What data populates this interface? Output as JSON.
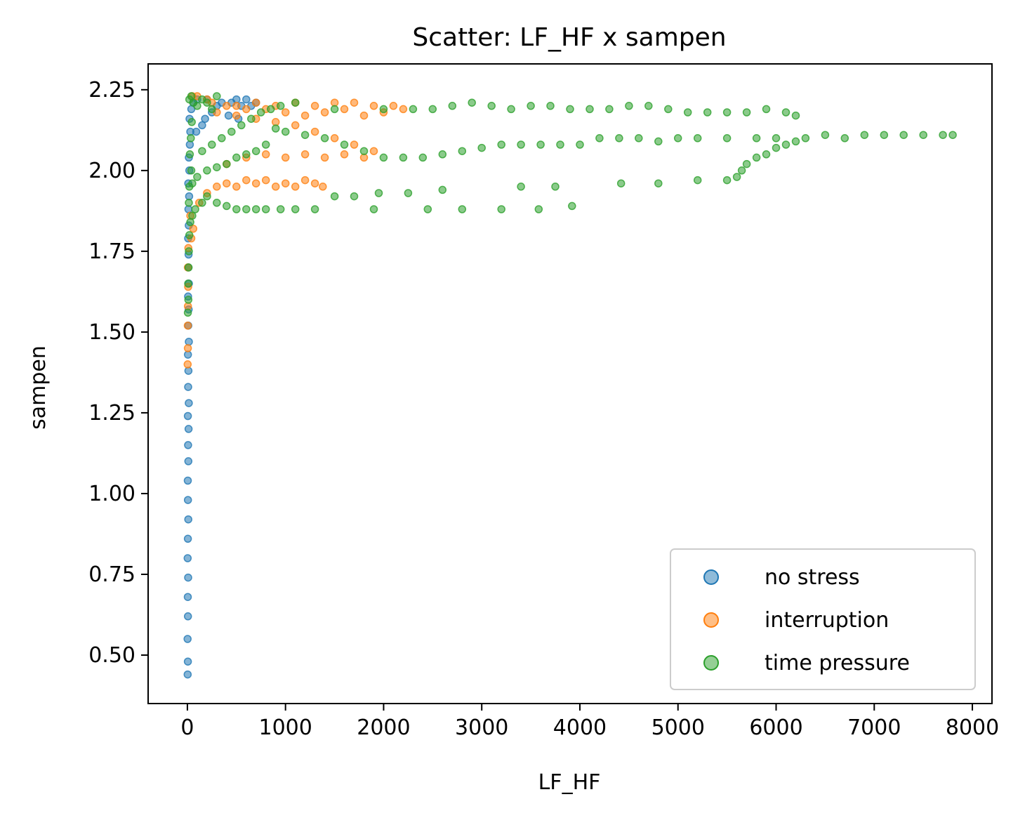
{
  "chart_data": {
    "type": "scatter",
    "title": "Scatter: LF_HF x sampen",
    "xlabel": "LF_HF",
    "ylabel": "sampen",
    "xlim": [
      -400,
      8200
    ],
    "ylim": [
      0.35,
      2.33
    ],
    "xticks": [
      0,
      1000,
      2000,
      3000,
      4000,
      5000,
      6000,
      7000,
      8000
    ],
    "xtick_labels": [
      "0",
      "1000",
      "2000",
      "3000",
      "4000",
      "5000",
      "6000",
      "7000",
      "8000"
    ],
    "yticks": [
      0.5,
      0.75,
      1.0,
      1.25,
      1.5,
      1.75,
      2.0,
      2.25
    ],
    "ytick_labels": [
      "0.50",
      "0.75",
      "1.00",
      "1.25",
      "1.50",
      "1.75",
      "2.00",
      "2.25"
    ],
    "grid": false,
    "legend_position": "bottom-right",
    "series": [
      {
        "name": "no stress",
        "color": "#1f77b4",
        "points": [
          [
            3,
            0.44
          ],
          [
            5,
            0.48
          ],
          [
            2,
            0.55
          ],
          [
            6,
            0.62
          ],
          [
            4,
            0.68
          ],
          [
            8,
            0.74
          ],
          [
            3,
            0.8
          ],
          [
            5,
            0.86
          ],
          [
            9,
            0.92
          ],
          [
            6,
            0.98
          ],
          [
            4,
            1.04
          ],
          [
            10,
            1.1
          ],
          [
            7,
            1.15
          ],
          [
            12,
            1.2
          ],
          [
            5,
            1.24
          ],
          [
            14,
            1.28
          ],
          [
            8,
            1.33
          ],
          [
            11,
            1.38
          ],
          [
            6,
            1.43
          ],
          [
            15,
            1.47
          ],
          [
            9,
            1.52
          ],
          [
            13,
            1.57
          ],
          [
            7,
            1.61
          ],
          [
            16,
            1.65
          ],
          [
            10,
            1.7
          ],
          [
            12,
            1.74
          ],
          [
            8,
            1.79
          ],
          [
            14,
            1.83
          ],
          [
            11,
            1.88
          ],
          [
            18,
            1.92
          ],
          [
            9,
            1.96
          ],
          [
            20,
            2.0
          ],
          [
            15,
            2.04
          ],
          [
            25,
            2.08
          ],
          [
            30,
            2.12
          ],
          [
            22,
            2.16
          ],
          [
            40,
            2.19
          ],
          [
            60,
            2.21
          ],
          [
            100,
            2.22
          ],
          [
            200,
            2.22
          ],
          [
            350,
            2.21
          ],
          [
            500,
            2.22
          ],
          [
            600,
            2.22
          ],
          [
            700,
            2.21
          ],
          [
            650,
            2.2
          ],
          [
            550,
            2.2
          ],
          [
            450,
            2.21
          ],
          [
            300,
            2.2
          ],
          [
            250,
            2.18
          ],
          [
            180,
            2.16
          ],
          [
            420,
            2.17
          ],
          [
            520,
            2.16
          ],
          [
            150,
            2.14
          ],
          [
            90,
            2.12
          ]
        ]
      },
      {
        "name": "interruption",
        "color": "#ff7f0e",
        "points": [
          [
            3,
            1.4
          ],
          [
            5,
            1.45
          ],
          [
            4,
            1.52
          ],
          [
            6,
            1.58
          ],
          [
            8,
            1.64
          ],
          [
            5,
            1.7
          ],
          [
            10,
            1.76
          ],
          [
            40,
            1.79
          ],
          [
            60,
            1.82
          ],
          [
            30,
            1.86
          ],
          [
            120,
            1.9
          ],
          [
            200,
            1.93
          ],
          [
            300,
            1.95
          ],
          [
            400,
            1.96
          ],
          [
            500,
            1.95
          ],
          [
            600,
            1.97
          ],
          [
            700,
            1.96
          ],
          [
            800,
            1.97
          ],
          [
            900,
            1.95
          ],
          [
            1000,
            1.96
          ],
          [
            1100,
            1.95
          ],
          [
            1200,
            1.97
          ],
          [
            1300,
            1.96
          ],
          [
            1380,
            1.95
          ],
          [
            400,
            2.02
          ],
          [
            600,
            2.04
          ],
          [
            800,
            2.05
          ],
          [
            1000,
            2.04
          ],
          [
            1200,
            2.05
          ],
          [
            1400,
            2.04
          ],
          [
            1600,
            2.05
          ],
          [
            1800,
            2.04
          ],
          [
            1900,
            2.06
          ],
          [
            1700,
            2.08
          ],
          [
            1500,
            2.1
          ],
          [
            1300,
            2.12
          ],
          [
            1100,
            2.14
          ],
          [
            900,
            2.15
          ],
          [
            700,
            2.16
          ],
          [
            500,
            2.17
          ],
          [
            300,
            2.18
          ],
          [
            500,
            2.2
          ],
          [
            700,
            2.21
          ],
          [
            900,
            2.2
          ],
          [
            1100,
            2.21
          ],
          [
            1300,
            2.2
          ],
          [
            1500,
            2.21
          ],
          [
            1700,
            2.21
          ],
          [
            1900,
            2.2
          ],
          [
            2100,
            2.2
          ],
          [
            2200,
            2.19
          ],
          [
            2000,
            2.18
          ],
          [
            1800,
            2.17
          ],
          [
            1600,
            2.19
          ],
          [
            1400,
            2.18
          ],
          [
            1200,
            2.17
          ],
          [
            1000,
            2.18
          ],
          [
            800,
            2.19
          ],
          [
            600,
            2.19
          ],
          [
            400,
            2.2
          ],
          [
            200,
            2.22
          ],
          [
            100,
            2.23
          ],
          [
            50,
            2.23
          ],
          [
            250,
            2.21
          ]
        ]
      },
      {
        "name": "time pressure",
        "color": "#2ca02c",
        "points": [
          [
            5,
            1.56
          ],
          [
            10,
            1.6
          ],
          [
            8,
            1.65
          ],
          [
            12,
            1.7
          ],
          [
            15,
            1.75
          ],
          [
            20,
            1.8
          ],
          [
            30,
            1.84
          ],
          [
            50,
            1.86
          ],
          [
            80,
            1.88
          ],
          [
            150,
            1.9
          ],
          [
            200,
            1.92
          ],
          [
            300,
            1.9
          ],
          [
            400,
            1.89
          ],
          [
            500,
            1.88
          ],
          [
            600,
            1.88
          ],
          [
            700,
            1.88
          ],
          [
            800,
            1.88
          ],
          [
            950,
            1.88
          ],
          [
            1100,
            1.88
          ],
          [
            1300,
            1.88
          ],
          [
            1500,
            1.92
          ],
          [
            1700,
            1.92
          ],
          [
            1900,
            1.88
          ],
          [
            1950,
            1.93
          ],
          [
            2250,
            1.93
          ],
          [
            2450,
            1.88
          ],
          [
            2600,
            1.94
          ],
          [
            2800,
            1.88
          ],
          [
            3200,
            1.88
          ],
          [
            3400,
            1.95
          ],
          [
            3580,
            1.88
          ],
          [
            3750,
            1.95
          ],
          [
            3920,
            1.89
          ],
          [
            4420,
            1.96
          ],
          [
            4800,
            1.96
          ],
          [
            5200,
            1.97
          ],
          [
            5500,
            1.97
          ],
          [
            5600,
            1.98
          ],
          [
            5650,
            2.0
          ],
          [
            5700,
            2.02
          ],
          [
            5800,
            2.04
          ],
          [
            5900,
            2.05
          ],
          [
            6000,
            2.07
          ],
          [
            6100,
            2.08
          ],
          [
            6200,
            2.09
          ],
          [
            6300,
            2.1
          ],
          [
            6500,
            2.11
          ],
          [
            6700,
            2.1
          ],
          [
            6900,
            2.11
          ],
          [
            7100,
            2.11
          ],
          [
            7300,
            2.11
          ],
          [
            7500,
            2.11
          ],
          [
            7700,
            2.11
          ],
          [
            7800,
            2.11
          ],
          [
            6000,
            2.1
          ],
          [
            5800,
            2.1
          ],
          [
            5500,
            2.1
          ],
          [
            5200,
            2.1
          ],
          [
            5000,
            2.1
          ],
          [
            4800,
            2.09
          ],
          [
            4600,
            2.1
          ],
          [
            4400,
            2.1
          ],
          [
            4200,
            2.1
          ],
          [
            4000,
            2.08
          ],
          [
            3800,
            2.08
          ],
          [
            3600,
            2.08
          ],
          [
            3400,
            2.08
          ],
          [
            3200,
            2.08
          ],
          [
            3000,
            2.07
          ],
          [
            2800,
            2.06
          ],
          [
            2600,
            2.05
          ],
          [
            2400,
            2.04
          ],
          [
            2200,
            2.04
          ],
          [
            2000,
            2.04
          ],
          [
            1800,
            2.06
          ],
          [
            1600,
            2.08
          ],
          [
            1400,
            2.1
          ],
          [
            1200,
            2.11
          ],
          [
            1000,
            2.12
          ],
          [
            900,
            2.13
          ],
          [
            800,
            2.08
          ],
          [
            700,
            2.06
          ],
          [
            600,
            2.05
          ],
          [
            500,
            2.04
          ],
          [
            400,
            2.02
          ],
          [
            300,
            2.01
          ],
          [
            200,
            2.0
          ],
          [
            100,
            1.98
          ],
          [
            50,
            1.96
          ],
          [
            150,
            2.06
          ],
          [
            250,
            2.08
          ],
          [
            350,
            2.1
          ],
          [
            450,
            2.12
          ],
          [
            550,
            2.14
          ],
          [
            650,
            2.16
          ],
          [
            750,
            2.18
          ],
          [
            850,
            2.19
          ],
          [
            950,
            2.2
          ],
          [
            1100,
            2.21
          ],
          [
            1500,
            2.19
          ],
          [
            2000,
            2.19
          ],
          [
            2300,
            2.19
          ],
          [
            2500,
            2.19
          ],
          [
            2700,
            2.2
          ],
          [
            2900,
            2.21
          ],
          [
            3100,
            2.2
          ],
          [
            3300,
            2.19
          ],
          [
            3500,
            2.2
          ],
          [
            3700,
            2.2
          ],
          [
            3900,
            2.19
          ],
          [
            4100,
            2.19
          ],
          [
            4300,
            2.19
          ],
          [
            4500,
            2.2
          ],
          [
            4700,
            2.2
          ],
          [
            4900,
            2.19
          ],
          [
            5100,
            2.18
          ],
          [
            5300,
            2.18
          ],
          [
            5500,
            2.18
          ],
          [
            5700,
            2.18
          ],
          [
            5900,
            2.19
          ],
          [
            6100,
            2.18
          ],
          [
            6200,
            2.17
          ],
          [
            20,
            2.22
          ],
          [
            40,
            2.23
          ],
          [
            60,
            2.21
          ],
          [
            100,
            2.2
          ],
          [
            150,
            2.22
          ],
          [
            200,
            2.21
          ],
          [
            250,
            2.19
          ],
          [
            300,
            2.23
          ],
          [
            20,
            1.95
          ],
          [
            40,
            2.0
          ],
          [
            25,
            2.05
          ],
          [
            35,
            2.1
          ],
          [
            45,
            2.15
          ],
          [
            15,
            1.9
          ]
        ]
      }
    ]
  }
}
